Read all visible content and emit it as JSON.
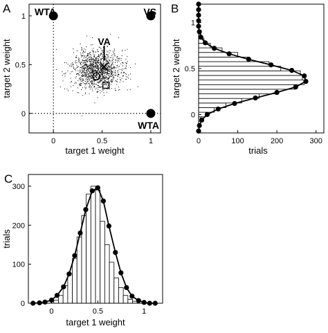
{
  "chart_data": [
    {
      "panel": "A",
      "type": "scatter",
      "xlabel": "target 1 weight",
      "ylabel": "target 2 weight",
      "xlim": [
        -0.25,
        1.1
      ],
      "ylim": [
        -0.2,
        1.12
      ],
      "xticks": [
        "0",
        "0.5",
        "1"
      ],
      "yticks": [
        "0",
        "0.5",
        "1"
      ],
      "cloud": {
        "center": [
          0.45,
          0.45
        ],
        "spread": [
          0.13,
          0.1
        ],
        "count": 1300
      },
      "markers": [
        {
          "label": "WTA",
          "x": 0,
          "y": 1
        },
        {
          "label": "VS",
          "x": 1,
          "y": 1
        },
        {
          "label": "WTA",
          "x": 1,
          "y": 0
        }
      ],
      "summary_points": [
        {
          "symbol": "x",
          "x": 0.52,
          "y": 0.48
        },
        {
          "symbol": "circle",
          "x": 0.44,
          "y": 0.38
        },
        {
          "symbol": "square",
          "x": 0.54,
          "y": 0.29
        }
      ],
      "annotation": {
        "label": "VA",
        "x": 0.5,
        "y": 0.5
      }
    },
    {
      "panel": "B",
      "type": "bar",
      "orientation": "horizontal",
      "xlabel": "trials",
      "ylabel": "target 2 weight",
      "xlim": [
        0,
        320
      ],
      "ylim": [
        -0.2,
        1.2
      ],
      "xticks": [
        "0",
        "100",
        "200",
        "300"
      ],
      "yticks": [
        "0",
        "0.5",
        "1"
      ],
      "bins": [
        {
          "y": -0.05,
          "count": 5
        },
        {
          "y": 0.0,
          "count": 18
        },
        {
          "y": 0.05,
          "count": 40
        },
        {
          "y": 0.1,
          "count": 70
        },
        {
          "y": 0.15,
          "count": 110
        },
        {
          "y": 0.2,
          "count": 155
        },
        {
          "y": 0.25,
          "count": 200
        },
        {
          "y": 0.3,
          "count": 248
        },
        {
          "y": 0.35,
          "count": 270
        },
        {
          "y": 0.4,
          "count": 265
        },
        {
          "y": 0.45,
          "count": 260
        },
        {
          "y": 0.5,
          "count": 210
        },
        {
          "y": 0.55,
          "count": 180
        },
        {
          "y": 0.6,
          "count": 130
        },
        {
          "y": 0.65,
          "count": 100
        },
        {
          "y": 0.7,
          "count": 60
        },
        {
          "y": 0.75,
          "count": 30
        },
        {
          "y": 0.8,
          "count": 14
        },
        {
          "y": 0.85,
          "count": 6
        }
      ],
      "fit": [
        {
          "y": -0.18,
          "x": 0
        },
        {
          "y": -0.12,
          "x": 2
        },
        {
          "y": -0.06,
          "x": 8
        },
        {
          "y": 0.0,
          "x": 22
        },
        {
          "y": 0.06,
          "x": 50
        },
        {
          "y": 0.12,
          "x": 92
        },
        {
          "y": 0.18,
          "x": 145
        },
        {
          "y": 0.24,
          "x": 200
        },
        {
          "y": 0.3,
          "x": 248
        },
        {
          "y": 0.36,
          "x": 274
        },
        {
          "y": 0.42,
          "x": 270
        },
        {
          "y": 0.48,
          "x": 238
        },
        {
          "y": 0.54,
          "x": 185
        },
        {
          "y": 0.6,
          "x": 128
        },
        {
          "y": 0.66,
          "x": 78
        },
        {
          "y": 0.72,
          "x": 40
        },
        {
          "y": 0.78,
          "x": 17
        },
        {
          "y": 0.84,
          "x": 6
        },
        {
          "y": 0.9,
          "x": 2
        },
        {
          "y": 0.96,
          "x": 0
        },
        {
          "y": 1.02,
          "x": 0
        },
        {
          "y": 1.08,
          "x": 0
        },
        {
          "y": 1.14,
          "x": 0
        },
        {
          "y": 1.2,
          "x": 0
        }
      ]
    },
    {
      "panel": "C",
      "type": "bar",
      "orientation": "vertical",
      "xlabel": "target 1 weight",
      "ylabel": "trials",
      "xlim": [
        -0.25,
        1.2
      ],
      "ylim": [
        0,
        330
      ],
      "xticks": [
        "0",
        "0.5",
        "1"
      ],
      "yticks": [
        "0",
        "100",
        "200",
        "300"
      ],
      "bins": [
        {
          "x": 0.05,
          "count": 8
        },
        {
          "x": 0.1,
          "count": 20
        },
        {
          "x": 0.15,
          "count": 45
        },
        {
          "x": 0.2,
          "count": 75
        },
        {
          "x": 0.25,
          "count": 115
        },
        {
          "x": 0.3,
          "count": 170
        },
        {
          "x": 0.35,
          "count": 225
        },
        {
          "x": 0.4,
          "count": 280
        },
        {
          "x": 0.45,
          "count": 300
        },
        {
          "x": 0.5,
          "count": 290
        },
        {
          "x": 0.55,
          "count": 210
        },
        {
          "x": 0.6,
          "count": 150
        },
        {
          "x": 0.65,
          "count": 105
        },
        {
          "x": 0.7,
          "count": 65
        },
        {
          "x": 0.75,
          "count": 40
        },
        {
          "x": 0.8,
          "count": 20
        },
        {
          "x": 0.85,
          "count": 10
        },
        {
          "x": 0.9,
          "count": 5
        }
      ],
      "fit": [
        {
          "x": -0.2,
          "y": 0
        },
        {
          "x": -0.13,
          "y": 1
        },
        {
          "x": -0.07,
          "y": 3
        },
        {
          "x": 0.0,
          "y": 8
        },
        {
          "x": 0.06,
          "y": 20
        },
        {
          "x": 0.13,
          "y": 42
        },
        {
          "x": 0.19,
          "y": 75
        },
        {
          "x": 0.25,
          "y": 122
        },
        {
          "x": 0.31,
          "y": 180
        },
        {
          "x": 0.37,
          "y": 240
        },
        {
          "x": 0.44,
          "y": 288
        },
        {
          "x": 0.5,
          "y": 296
        },
        {
          "x": 0.56,
          "y": 262
        },
        {
          "x": 0.62,
          "y": 198
        },
        {
          "x": 0.69,
          "y": 130
        },
        {
          "x": 0.75,
          "y": 78
        },
        {
          "x": 0.81,
          "y": 40
        },
        {
          "x": 0.87,
          "y": 18
        },
        {
          "x": 0.94,
          "y": 7
        },
        {
          "x": 1.0,
          "y": 2
        },
        {
          "x": 1.06,
          "y": 0
        },
        {
          "x": 1.12,
          "y": 0
        }
      ]
    }
  ]
}
